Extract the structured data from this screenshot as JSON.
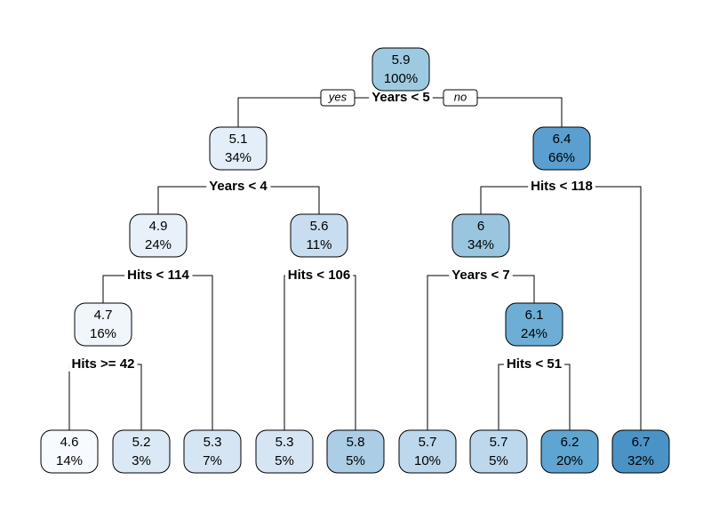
{
  "nodes": [
    {
      "value": "5.9",
      "percent": "100%",
      "color": "#9ecae1"
    },
    {
      "value": "5.1",
      "percent": "34%",
      "color": "#e3eef9"
    },
    {
      "value": "6.4",
      "percent": "66%",
      "color": "#5a9fcf"
    },
    {
      "value": "4.9",
      "percent": "24%",
      "color": "#e8f1fa"
    },
    {
      "value": "5.6",
      "percent": "11%",
      "color": "#c9ddf0"
    },
    {
      "value": "6",
      "percent": "34%",
      "color": "#99c5df"
    },
    {
      "value": "4.7",
      "percent": "16%",
      "color": "#f0f6fc"
    },
    {
      "value": "6.1",
      "percent": "24%",
      "color": "#6eaed6"
    },
    {
      "value": "4.6",
      "percent": "14%",
      "color": "#f7fbff"
    },
    {
      "value": "5.2",
      "percent": "3%",
      "color": "#dbe8f5"
    },
    {
      "value": "5.3",
      "percent": "7%",
      "color": "#d6e5f4"
    },
    {
      "value": "5.3",
      "percent": "5%",
      "color": "#d6e5f4"
    },
    {
      "value": "5.8",
      "percent": "5%",
      "color": "#abcde5"
    },
    {
      "value": "5.7",
      "percent": "10%",
      "color": "#bdd7ec"
    },
    {
      "value": "5.7",
      "percent": "5%",
      "color": "#bdd7ec"
    },
    {
      "value": "6.2",
      "percent": "20%",
      "color": "#5fa5d1"
    },
    {
      "value": "6.7",
      "percent": "32%",
      "color": "#4a93c6"
    }
  ],
  "splits": [
    {
      "label": "Years < 5"
    },
    {
      "label": "Years < 4"
    },
    {
      "label": "Hits < 118"
    },
    {
      "label": "Hits < 114"
    },
    {
      "label": "Hits < 106"
    },
    {
      "label": "Years < 7"
    },
    {
      "label": "Hits >= 42"
    },
    {
      "label": "Hits < 51"
    }
  ],
  "branch_labels": {
    "yes": "yes",
    "no": "no"
  }
}
